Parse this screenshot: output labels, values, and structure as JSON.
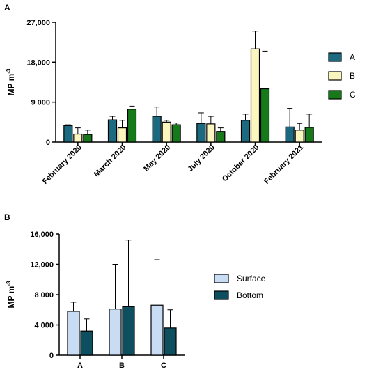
{
  "chart_data": [
    {
      "panel": "A",
      "type": "bar",
      "ylabel": "MP m",
      "ylabel_sup": "-3",
      "ylim": [
        0,
        27000
      ],
      "yticks": [
        0,
        9000,
        18000,
        27000
      ],
      "ytick_labels": [
        "0",
        "9 000",
        "18,000",
        "27,000"
      ],
      "categories": [
        "February 2020",
        "March 2020",
        "May 2020",
        "July 2020",
        "October 2020",
        "February 2021"
      ],
      "series": [
        {
          "name": "A",
          "color": "#1b6a80",
          "values": [
            3700,
            5000,
            5800,
            4200,
            4900,
            3400
          ],
          "errors": [
            200,
            800,
            2100,
            2400,
            1400,
            4200
          ]
        },
        {
          "name": "B",
          "color": "#fbf6bd",
          "values": [
            1800,
            3200,
            4500,
            4100,
            21000,
            2700
          ],
          "errors": [
            1400,
            1700,
            400,
            1700,
            4000,
            1500
          ]
        },
        {
          "name": "C",
          "color": "#167a1a",
          "values": [
            1700,
            7400,
            3900,
            2400,
            12000,
            3300
          ],
          "errors": [
            1000,
            700,
            400,
            800,
            8500,
            3000
          ]
        }
      ],
      "legend": "right"
    },
    {
      "panel": "B",
      "type": "bar",
      "ylabel": "MP m",
      "ylabel_sup": "-3",
      "ylim": [
        0,
        16000
      ],
      "yticks": [
        0,
        4000,
        8000,
        12000,
        16000
      ],
      "ytick_labels": [
        "0",
        "4 000",
        "8 000",
        "12,000",
        "16,000"
      ],
      "categories": [
        "A",
        "B",
        "C"
      ],
      "series": [
        {
          "name": "Surface",
          "color": "#c8dcf3",
          "values": [
            5800,
            6100,
            6600
          ],
          "errors": [
            1200,
            5900,
            6000
          ]
        },
        {
          "name": "Bottom",
          "color": "#0d4f5f",
          "values": [
            3200,
            6400,
            3600
          ],
          "errors": [
            1600,
            8800,
            2400
          ]
        }
      ],
      "legend": "right"
    }
  ]
}
